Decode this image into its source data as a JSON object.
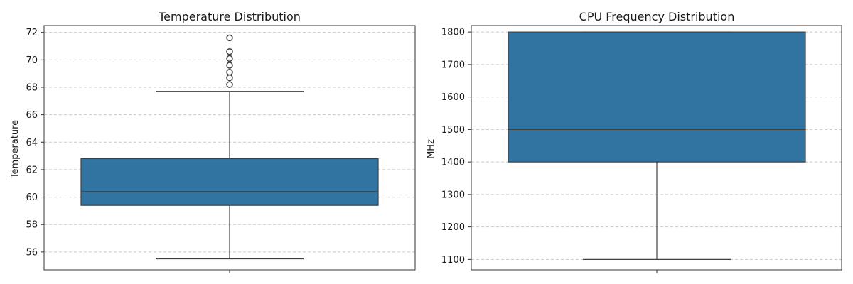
{
  "chart_data": [
    {
      "type": "box",
      "title": "Temperature Distribution",
      "xlabel": "",
      "ylabel": "Temperature",
      "ylim": [
        54.7,
        72.5
      ],
      "yticks": [
        56,
        58,
        60,
        62,
        64,
        66,
        68,
        70,
        72
      ],
      "grid": "y-dashed",
      "box": {
        "whisker_low": 55.5,
        "q1": 59.4,
        "median": 60.4,
        "q3": 62.8,
        "whisker_high": 67.7,
        "outliers": [
          68.2,
          68.7,
          69.1,
          69.6,
          70.1,
          70.6,
          71.6
        ]
      },
      "color": "#3274a1"
    },
    {
      "type": "box",
      "title": "CPU Frequency Distribution",
      "xlabel": "",
      "ylabel": "MHz",
      "ylim": [
        1068,
        1820
      ],
      "yticks": [
        1100,
        1200,
        1300,
        1400,
        1500,
        1600,
        1700,
        1800
      ],
      "grid": "y-dashed",
      "box": {
        "whisker_low": 1100,
        "q1": 1400,
        "median": 1500,
        "q3": 1800,
        "whisker_high": 1800,
        "outliers": []
      },
      "color": "#3274a1"
    }
  ]
}
